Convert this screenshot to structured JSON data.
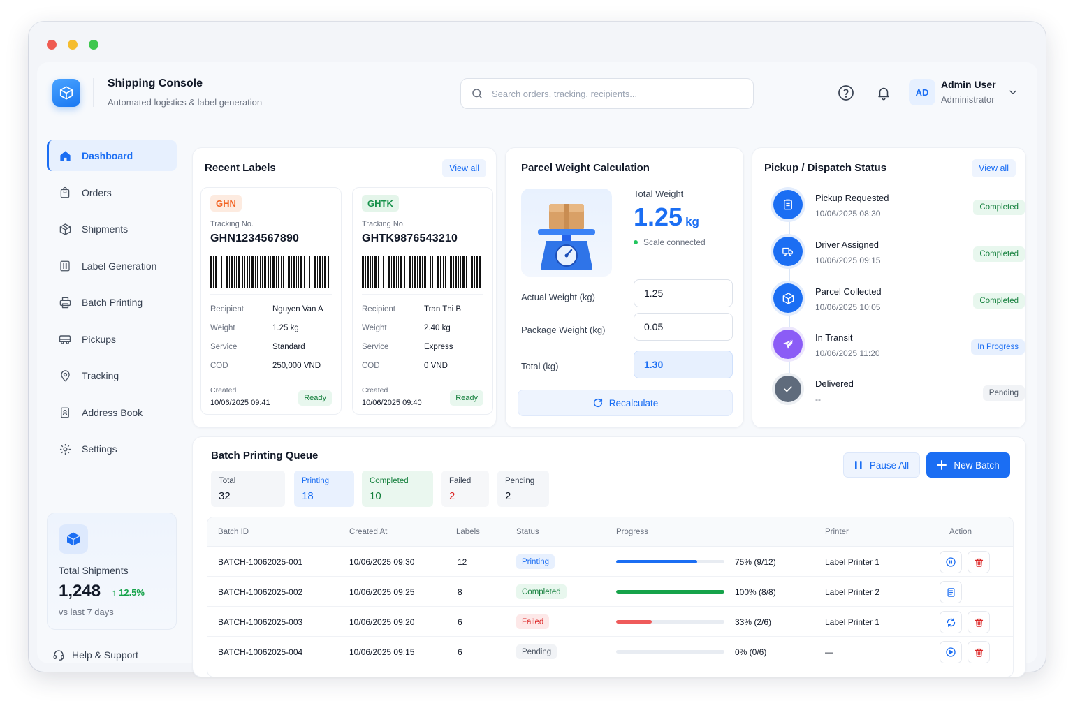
{
  "app": {
    "title": "Shipping Console",
    "subtitle": "Automated logistics & label generation"
  },
  "search": {
    "placeholder": "Search orders, tracking, recipients..."
  },
  "user": {
    "initials": "AD",
    "name": "Admin User",
    "role": "Administrator"
  },
  "sidebar": {
    "items": [
      {
        "label": "Dashboard",
        "icon": "home-icon",
        "active": true
      },
      {
        "label": "Orders",
        "icon": "bag-icon"
      },
      {
        "label": "Shipments",
        "icon": "box-icon"
      },
      {
        "label": "Label Generation",
        "icon": "label-icon"
      },
      {
        "label": "Batch Printing",
        "icon": "printer-icon"
      },
      {
        "label": "Pickups",
        "icon": "truck-icon"
      },
      {
        "label": "Tracking",
        "icon": "pin-icon"
      },
      {
        "label": "Address Book",
        "icon": "book-icon"
      },
      {
        "label": "Settings",
        "icon": "gear-icon"
      }
    ],
    "stat": {
      "title": "Total Shipments",
      "value": "1,248",
      "trend": "12.5%",
      "sub": "vs last 7 days"
    },
    "help": "Help & Support"
  },
  "recent_labels": {
    "title": "Recent Labels",
    "view_all": "View all",
    "tracking_label": "Tracking No.",
    "created_label": "Created",
    "fields": {
      "recipient": "Recipient",
      "weight": "Weight",
      "service": "Service",
      "cod": "COD"
    },
    "labels": [
      {
        "carrier": "GHN",
        "tracking": "GHN1234567890",
        "recipient": "Nguyen Van A",
        "weight": "1.25 kg",
        "service": "Standard",
        "cod": "250,000 VND",
        "created": "10/06/2025 09:41",
        "status": "Ready"
      },
      {
        "carrier": "GHTK",
        "tracking": "GHTK9876543210",
        "recipient": "Tran Thi B",
        "weight": "2.40 kg",
        "service": "Express",
        "cod": "0 VND",
        "created": "10/06/2025 09:40",
        "status": "Ready"
      }
    ]
  },
  "weight": {
    "title": "Parcel Weight Calculation",
    "total_label": "Total Weight",
    "total_value": "1.25",
    "total_unit": "kg",
    "scale_status": "Scale connected",
    "actual_label": "Actual Weight (kg)",
    "actual_value": "1.25",
    "package_label": "Package Weight (kg)",
    "package_value": "0.05",
    "sum_label": "Total (kg)",
    "sum_value": "1.30",
    "recalc": "Recalculate"
  },
  "pickup": {
    "title": "Pickup / Dispatch Status",
    "view_all": "View all",
    "steps": [
      {
        "title": "Pickup Requested",
        "time": "10/06/2025 08:30",
        "status": "Completed",
        "icon": "clipboard-icon"
      },
      {
        "title": "Driver Assigned",
        "time": "10/06/2025 09:15",
        "status": "Completed",
        "icon": "truck-icon"
      },
      {
        "title": "Parcel Collected",
        "time": "10/06/2025 10:05",
        "status": "Completed",
        "icon": "box-icon"
      },
      {
        "title": "In Transit",
        "time": "10/06/2025 11:20",
        "status": "In Progress",
        "icon": "plane-icon"
      },
      {
        "title": "Delivered",
        "time": "--",
        "status": "Pending",
        "icon": "check-icon"
      }
    ]
  },
  "batch": {
    "title": "Batch Printing Queue",
    "pause_all": "Pause All",
    "new_batch": "New Batch",
    "stats": [
      {
        "label": "Total",
        "value": "32"
      },
      {
        "label": "Printing",
        "value": "18"
      },
      {
        "label": "Completed",
        "value": "10"
      },
      {
        "label": "Failed",
        "value": "2"
      },
      {
        "label": "Pending",
        "value": "2"
      }
    ],
    "columns": [
      "Batch ID",
      "Created At",
      "Labels",
      "Status",
      "Progress",
      "Printer",
      "Action"
    ],
    "rows": [
      {
        "id": "BATCH-10062025-001",
        "created": "10/06/2025 09:30",
        "labels": "12",
        "status": "Printing",
        "progress": 0.75,
        "progress_text": "75%  (9/12)",
        "printer": "Label Printer 1"
      },
      {
        "id": "BATCH-10062025-002",
        "created": "10/06/2025 09:25",
        "labels": "8",
        "status": "Completed",
        "progress": 1.0,
        "progress_text": "100%  (8/8)",
        "printer": "Label Printer 2"
      },
      {
        "id": "BATCH-10062025-003",
        "created": "10/06/2025 09:20",
        "labels": "6",
        "status": "Failed",
        "progress": 0.33,
        "progress_text": "33%  (2/6)",
        "printer": "Label Printer 1"
      },
      {
        "id": "BATCH-10062025-004",
        "created": "10/06/2025 09:15",
        "labels": "6",
        "status": "Pending",
        "progress": 0.0,
        "progress_text": "0%  (0/6)",
        "printer": "—"
      }
    ]
  },
  "colors": {
    "accent": "#1b6ef3",
    "success": "#16a34a",
    "danger": "#dc2626",
    "purple": "#8b5cf6"
  }
}
